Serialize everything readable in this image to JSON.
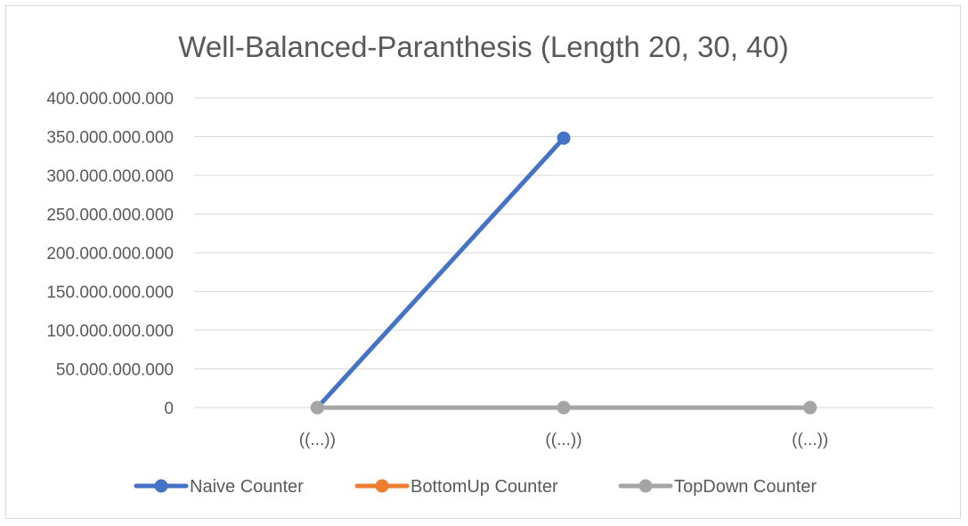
{
  "chart_data": {
    "type": "line",
    "title": "Well-Balanced-Paranthesis (Length 20, 30, 40)",
    "xlabel": "",
    "ylabel": "",
    "categories": [
      "((...))",
      "((...))",
      "((...))"
    ],
    "ylim": [
      0,
      400000000000
    ],
    "yticks": [
      0,
      50000000000,
      100000000000,
      150000000000,
      200000000000,
      250000000000,
      300000000000,
      350000000000,
      400000000000
    ],
    "ytick_labels": [
      "0",
      "50.000.000.000",
      "100.000.000.000",
      "150.000.000.000",
      "200.000.000.000",
      "250.000.000.000",
      "300.000.000.000",
      "350.000.000.000",
      "400.000.000.000"
    ],
    "grid": true,
    "legend_position": "bottom",
    "series": [
      {
        "name": "Naive Counter",
        "values": [
          0,
          348000000000,
          null
        ],
        "color": "#4472C4"
      },
      {
        "name": "BottomUp Counter",
        "values": [
          0,
          0,
          0
        ],
        "color": "#ED7D31"
      },
      {
        "name": "TopDown Counter",
        "values": [
          0,
          0,
          0
        ],
        "color": "#A5A5A5"
      }
    ]
  }
}
